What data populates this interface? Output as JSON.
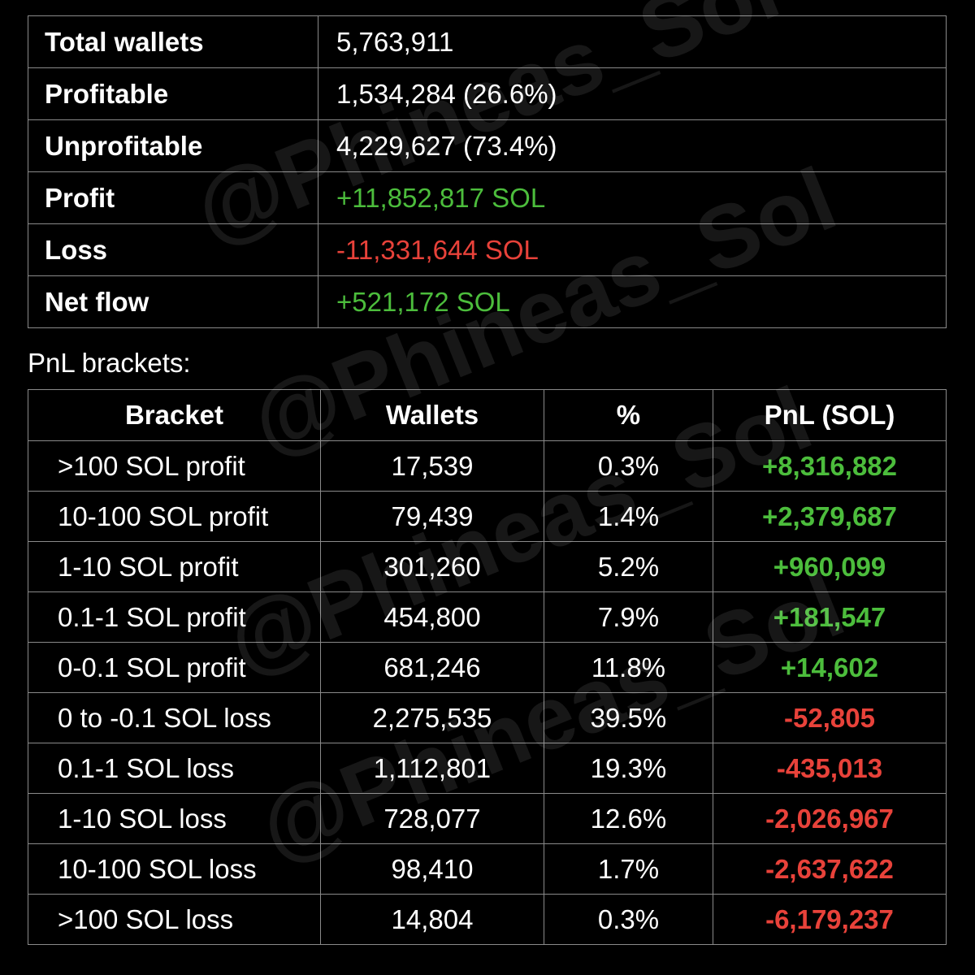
{
  "watermark": "@Phineas_Sol",
  "summary": {
    "rows": [
      {
        "label": "Total wallets",
        "value": "5,763,911",
        "color": "#ffffff"
      },
      {
        "label": "Profitable",
        "value": "1,534,284 (26.6%)",
        "color": "#ffffff"
      },
      {
        "label": "Unprofitable",
        "value": "4,229,627 (73.4%)",
        "color": "#ffffff"
      },
      {
        "label": "Profit",
        "value": "+11,852,817 SOL",
        "color": "#4cbd3c"
      },
      {
        "label": "Loss",
        "value": "-11,331,644 SOL",
        "color": "#e8423a"
      },
      {
        "label": "Net flow",
        "value": "+521,172 SOL",
        "color": "#4cbd3c"
      }
    ]
  },
  "brackets": {
    "title": "PnL brackets:",
    "columns": [
      "Bracket",
      "Wallets",
      "%",
      "PnL (SOL)"
    ],
    "rows": [
      {
        "cells": [
          ">100 SOL profit",
          "17,539",
          "0.3%",
          "+8,316,882"
        ],
        "color": "#4cbd3c"
      },
      {
        "cells": [
          "10-100 SOL profit",
          "79,439",
          "1.4%",
          "+2,379,687"
        ],
        "color": "#4cbd3c"
      },
      {
        "cells": [
          "1-10 SOL profit",
          "301,260",
          "5.2%",
          "+960,099"
        ],
        "color": "#4cbd3c"
      },
      {
        "cells": [
          "0.1-1 SOL profit",
          "454,800",
          "7.9%",
          "+181,547"
        ],
        "color": "#4cbd3c"
      },
      {
        "cells": [
          "0-0.1 SOL profit",
          "681,246",
          "11.8%",
          "+14,602"
        ],
        "color": "#4cbd3c"
      },
      {
        "cells": [
          "0 to -0.1 SOL loss",
          "2,275,535",
          "39.5%",
          "-52,805"
        ],
        "color": "#e8423a"
      },
      {
        "cells": [
          "0.1-1 SOL loss",
          "1,112,801",
          "19.3%",
          "-435,013"
        ],
        "color": "#e8423a"
      },
      {
        "cells": [
          "1-10 SOL loss",
          "728,077",
          "12.6%",
          "-2,026,967"
        ],
        "color": "#e8423a"
      },
      {
        "cells": [
          "10-100 SOL loss",
          "98,410",
          "1.7%",
          "-2,637,622"
        ],
        "color": "#e8423a"
      },
      {
        "cells": [
          ">100 SOL loss",
          "14,804",
          "0.3%",
          "-6,179,237"
        ],
        "color": "#e8423a"
      }
    ]
  }
}
